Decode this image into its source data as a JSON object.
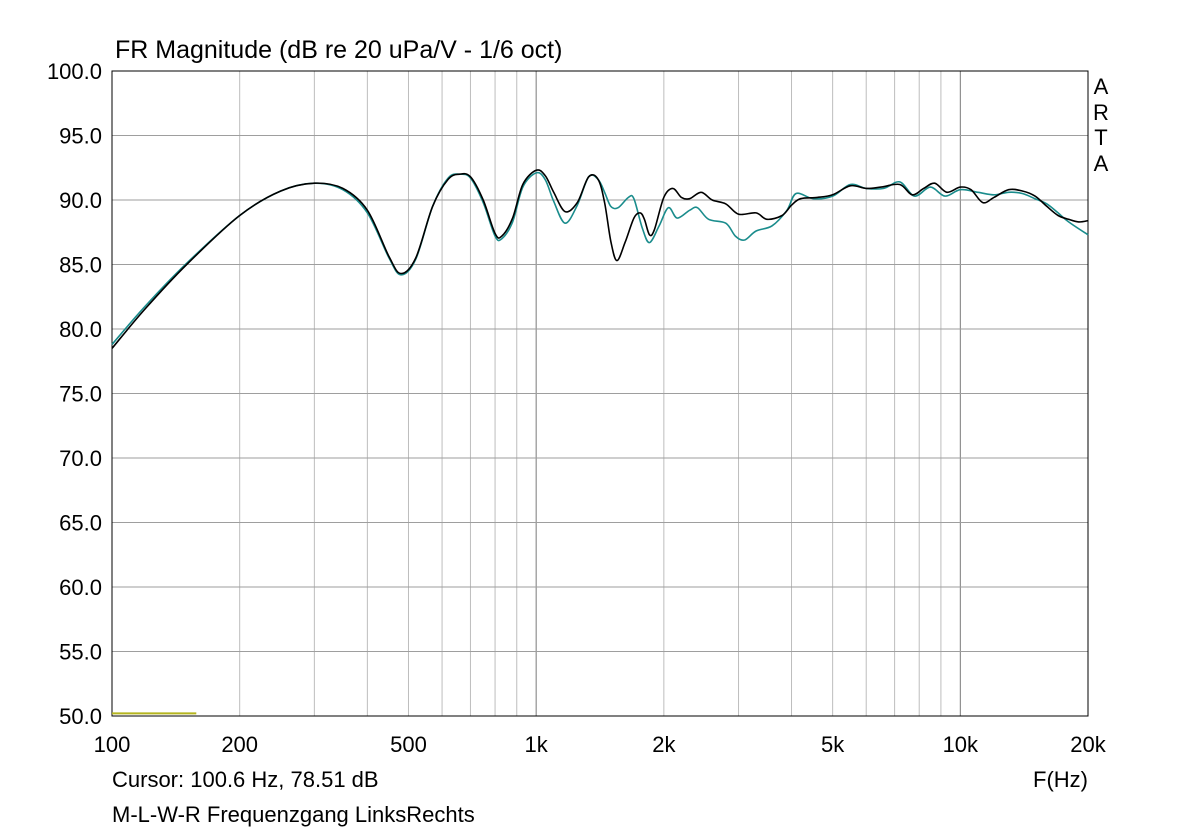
{
  "chart_data": {
    "type": "line",
    "title": "FR Magnitude (dB re 20 uPa/V - 1/6 oct)",
    "xlabel": "F(Hz)",
    "ylabel": "",
    "x_scale": "log",
    "xlim": [
      100,
      20000
    ],
    "ylim": [
      50,
      100
    ],
    "grid": true,
    "x_ticks": [
      {
        "value": 100,
        "label": "100"
      },
      {
        "value": 200,
        "label": "200"
      },
      {
        "value": 500,
        "label": "500"
      },
      {
        "value": 1000,
        "label": "1k"
      },
      {
        "value": 2000,
        "label": "2k"
      },
      {
        "value": 5000,
        "label": "5k"
      },
      {
        "value": 10000,
        "label": "10k"
      },
      {
        "value": 20000,
        "label": "20k"
      }
    ],
    "y_ticks": [
      {
        "value": 100,
        "label": "100.0"
      },
      {
        "value": 95,
        "label": "95.0"
      },
      {
        "value": 90,
        "label": "90.0"
      },
      {
        "value": 85,
        "label": "85.0"
      },
      {
        "value": 80,
        "label": "80.0"
      },
      {
        "value": 75,
        "label": "75.0"
      },
      {
        "value": 70,
        "label": "70.0"
      },
      {
        "value": 65,
        "label": "65.0"
      },
      {
        "value": 60,
        "label": "60.0"
      },
      {
        "value": 55,
        "label": "55.0"
      },
      {
        "value": 50,
        "label": "50.0"
      }
    ],
    "series": [
      {
        "color": "#000000",
        "points": [
          [
            100,
            78.5
          ],
          [
            120,
            81.6
          ],
          [
            150,
            85.0
          ],
          [
            200,
            88.8
          ],
          [
            250,
            90.7
          ],
          [
            300,
            91.3
          ],
          [
            350,
            90.9
          ],
          [
            400,
            89.2
          ],
          [
            450,
            85.6
          ],
          [
            480,
            84.3
          ],
          [
            520,
            85.5
          ],
          [
            570,
            89.5
          ],
          [
            620,
            91.6
          ],
          [
            660,
            92.0
          ],
          [
            700,
            91.8
          ],
          [
            750,
            90.0
          ],
          [
            800,
            87.4
          ],
          [
            830,
            87.2
          ],
          [
            880,
            88.6
          ],
          [
            930,
            91.2
          ],
          [
            1000,
            92.3
          ],
          [
            1050,
            91.9
          ],
          [
            1100,
            90.6
          ],
          [
            1170,
            89.1
          ],
          [
            1250,
            89.8
          ],
          [
            1330,
            91.8
          ],
          [
            1400,
            91.6
          ],
          [
            1450,
            89.8
          ],
          [
            1500,
            86.8
          ],
          [
            1550,
            85.3
          ],
          [
            1620,
            86.7
          ],
          [
            1700,
            88.6
          ],
          [
            1760,
            89.0
          ],
          [
            1800,
            88.5
          ],
          [
            1850,
            87.3
          ],
          [
            1900,
            87.7
          ],
          [
            2000,
            90.2
          ],
          [
            2100,
            90.9
          ],
          [
            2200,
            90.2
          ],
          [
            2300,
            90.1
          ],
          [
            2450,
            90.6
          ],
          [
            2600,
            90.0
          ],
          [
            2800,
            89.7
          ],
          [
            3000,
            88.9
          ],
          [
            3300,
            89.0
          ],
          [
            3500,
            88.5
          ],
          [
            3800,
            88.8
          ],
          [
            4000,
            89.6
          ],
          [
            4200,
            90.1
          ],
          [
            4600,
            90.2
          ],
          [
            5000,
            90.4
          ],
          [
            5500,
            91.1
          ],
          [
            6000,
            90.9
          ],
          [
            6500,
            91.0
          ],
          [
            7200,
            91.2
          ],
          [
            7700,
            90.4
          ],
          [
            8200,
            90.9
          ],
          [
            8700,
            91.3
          ],
          [
            9300,
            90.6
          ],
          [
            10000,
            91.0
          ],
          [
            10600,
            90.8
          ],
          [
            11300,
            89.8
          ],
          [
            12000,
            90.2
          ],
          [
            13000,
            90.8
          ],
          [
            14000,
            90.7
          ],
          [
            15000,
            90.3
          ],
          [
            16000,
            89.5
          ],
          [
            17000,
            88.8
          ],
          [
            18000,
            88.5
          ],
          [
            19000,
            88.3
          ],
          [
            20000,
            88.4
          ]
        ]
      },
      {
        "color": "#1a8c8c",
        "points": [
          [
            100,
            78.8
          ],
          [
            120,
            81.8
          ],
          [
            150,
            85.1
          ],
          [
            200,
            88.8
          ],
          [
            250,
            90.7
          ],
          [
            300,
            91.3
          ],
          [
            350,
            90.8
          ],
          [
            400,
            89.0
          ],
          [
            450,
            85.5
          ],
          [
            480,
            84.2
          ],
          [
            520,
            85.4
          ],
          [
            570,
            89.5
          ],
          [
            620,
            91.7
          ],
          [
            660,
            92.0
          ],
          [
            700,
            91.7
          ],
          [
            750,
            89.8
          ],
          [
            800,
            87.2
          ],
          [
            830,
            87.0
          ],
          [
            880,
            88.3
          ],
          [
            930,
            91.0
          ],
          [
            1000,
            92.1
          ],
          [
            1050,
            91.6
          ],
          [
            1100,
            89.9
          ],
          [
            1170,
            88.2
          ],
          [
            1250,
            89.6
          ],
          [
            1330,
            91.8
          ],
          [
            1400,
            91.6
          ],
          [
            1450,
            90.6
          ],
          [
            1500,
            89.5
          ],
          [
            1560,
            89.4
          ],
          [
            1650,
            90.2
          ],
          [
            1700,
            90.1
          ],
          [
            1780,
            87.8
          ],
          [
            1850,
            86.7
          ],
          [
            1950,
            88.0
          ],
          [
            2050,
            89.4
          ],
          [
            2150,
            88.6
          ],
          [
            2300,
            89.2
          ],
          [
            2400,
            89.4
          ],
          [
            2550,
            88.5
          ],
          [
            2800,
            88.2
          ],
          [
            2950,
            87.2
          ],
          [
            3100,
            86.9
          ],
          [
            3300,
            87.6
          ],
          [
            3600,
            88.0
          ],
          [
            3900,
            89.2
          ],
          [
            4100,
            90.5
          ],
          [
            4500,
            90.1
          ],
          [
            5000,
            90.3
          ],
          [
            5500,
            91.2
          ],
          [
            6000,
            90.9
          ],
          [
            6600,
            90.9
          ],
          [
            7200,
            91.4
          ],
          [
            7800,
            90.3
          ],
          [
            8500,
            91.0
          ],
          [
            9200,
            90.3
          ],
          [
            10000,
            90.8
          ],
          [
            11000,
            90.6
          ],
          [
            12000,
            90.4
          ],
          [
            13000,
            90.6
          ],
          [
            14000,
            90.5
          ],
          [
            15000,
            90.1
          ],
          [
            16000,
            89.7
          ],
          [
            17000,
            89.0
          ],
          [
            18000,
            88.3
          ],
          [
            20000,
            87.3
          ]
        ]
      },
      {
        "color": "#b5b51e",
        "points": [
          [
            100,
            50.2
          ],
          [
            158,
            50.2
          ]
        ]
      }
    ]
  },
  "watermark_letters": [
    "A",
    "R",
    "T",
    "A"
  ],
  "cursor_readout": "Cursor: 100.6 Hz, 78.51 dB",
  "footer_label": "M-L-W-R Frequenzgang LinksRechts"
}
